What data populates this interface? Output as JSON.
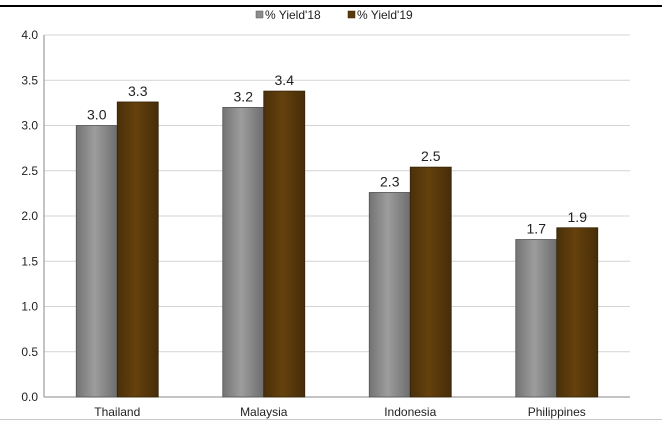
{
  "chart_data": {
    "type": "bar",
    "categories": [
      "Thailand",
      "Malaysia",
      "Indonesia",
      "Philippines"
    ],
    "series": [
      {
        "name": "% Yield'18",
        "values": [
          3.0,
          3.2,
          2.3,
          1.7
        ],
        "labels": [
          "3.0",
          "3.2",
          "2.3",
          "1.7"
        ],
        "color": "#8c8c8c"
      },
      {
        "name": "% Yield'19",
        "values": [
          3.3,
          3.4,
          2.5,
          1.9
        ],
        "labels": [
          "3.3",
          "3.4",
          "2.5",
          "1.9"
        ],
        "color": "#5a3a0c"
      }
    ],
    "plot_values": {
      "% Yield'18": [
        3.0,
        3.2,
        2.26,
        1.74
      ],
      "% Yield'19": [
        3.26,
        3.38,
        2.54,
        1.87
      ]
    },
    "ylim": [
      0,
      4.0
    ],
    "yticks": [
      "0.0",
      "0.5",
      "1.0",
      "1.5",
      "2.0",
      "2.5",
      "3.0",
      "3.5",
      "4.0"
    ],
    "grid": true,
    "legend_position": "top-center",
    "xlabel": "",
    "ylabel": "",
    "title": ""
  }
}
